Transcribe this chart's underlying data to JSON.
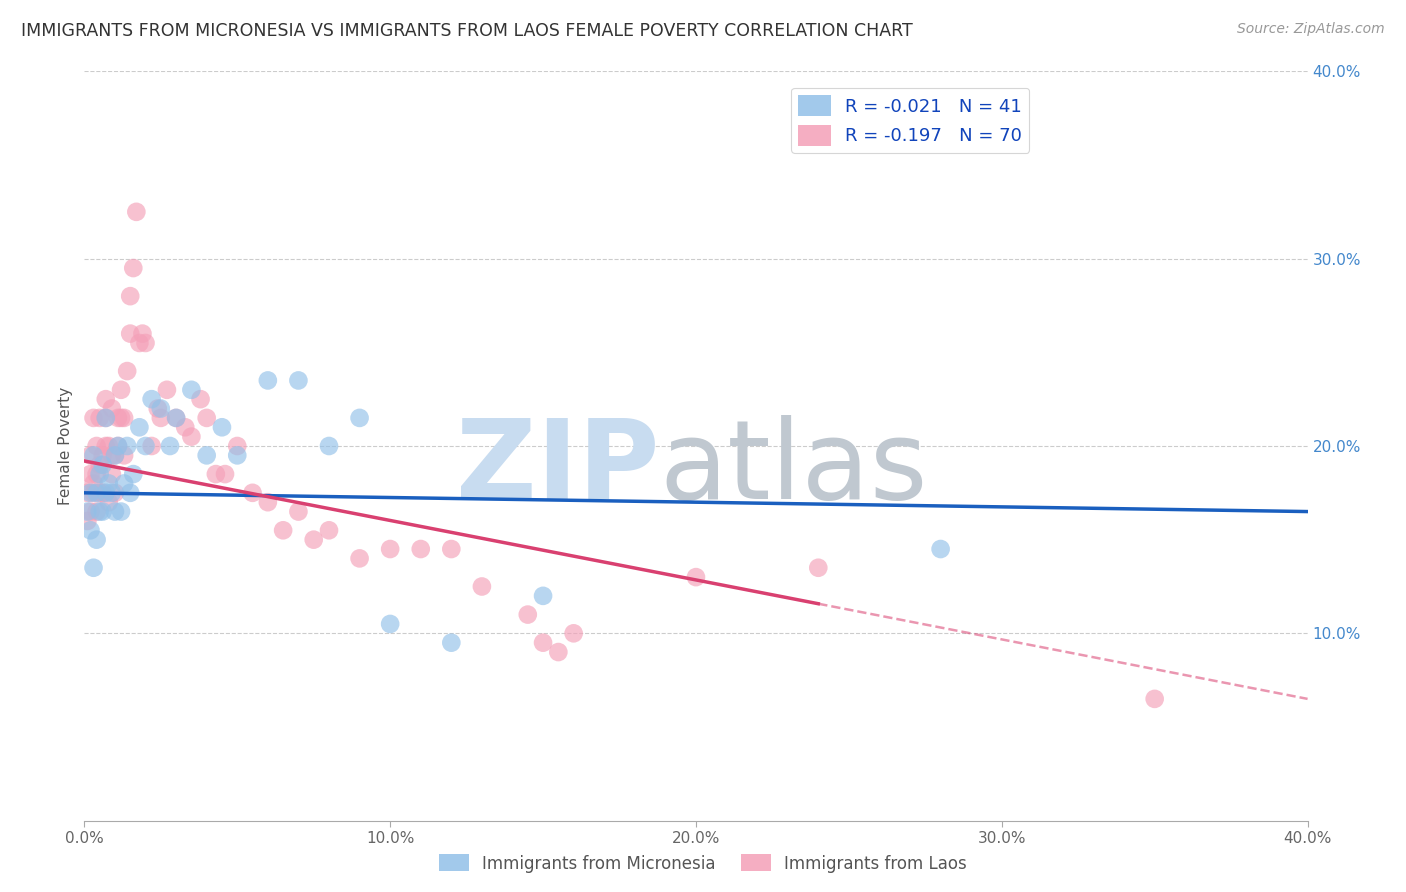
{
  "title": "IMMIGRANTS FROM MICRONESIA VS IMMIGRANTS FROM LAOS FEMALE POVERTY CORRELATION CHART",
  "source": "Source: ZipAtlas.com",
  "ylabel": "Female Poverty",
  "x_min": 0.0,
  "x_max": 0.4,
  "y_min": 0.0,
  "y_max": 0.4,
  "x_ticks": [
    0.0,
    0.1,
    0.2,
    0.3,
    0.4
  ],
  "x_tick_labels": [
    "0.0%",
    "10.0%",
    "20.0%",
    "30.0%",
    "40.0%"
  ],
  "y_ticks_right": [
    0.1,
    0.2,
    0.3,
    0.4
  ],
  "y_tick_labels_right": [
    "10.0%",
    "20.0%",
    "30.0%",
    "40.0%"
  ],
  "micronesia_color": "#92C0E8",
  "laos_color": "#F4A0B8",
  "micronesia_R": -0.021,
  "micronesia_N": 41,
  "laos_R": -0.197,
  "laos_N": 70,
  "legend_label_micronesia": "Immigrants from Micronesia",
  "legend_label_laos": "Immigrants from Laos",
  "micronesia_x": [
    0.001,
    0.002,
    0.002,
    0.003,
    0.003,
    0.004,
    0.004,
    0.005,
    0.005,
    0.006,
    0.006,
    0.007,
    0.007,
    0.008,
    0.009,
    0.01,
    0.01,
    0.011,
    0.012,
    0.013,
    0.014,
    0.015,
    0.016,
    0.018,
    0.02,
    0.022,
    0.025,
    0.028,
    0.03,
    0.035,
    0.04,
    0.045,
    0.05,
    0.06,
    0.07,
    0.08,
    0.09,
    0.1,
    0.12,
    0.15,
    0.28
  ],
  "micronesia_y": [
    0.165,
    0.155,
    0.175,
    0.135,
    0.195,
    0.15,
    0.175,
    0.165,
    0.185,
    0.165,
    0.19,
    0.175,
    0.215,
    0.18,
    0.175,
    0.195,
    0.165,
    0.2,
    0.165,
    0.18,
    0.2,
    0.175,
    0.185,
    0.21,
    0.2,
    0.225,
    0.22,
    0.2,
    0.215,
    0.23,
    0.195,
    0.21,
    0.195,
    0.235,
    0.235,
    0.2,
    0.215,
    0.105,
    0.095,
    0.12,
    0.145
  ],
  "laos_x": [
    0.001,
    0.001,
    0.002,
    0.002,
    0.002,
    0.003,
    0.003,
    0.003,
    0.004,
    0.004,
    0.004,
    0.005,
    0.005,
    0.005,
    0.006,
    0.006,
    0.007,
    0.007,
    0.007,
    0.008,
    0.008,
    0.009,
    0.009,
    0.009,
    0.01,
    0.01,
    0.011,
    0.011,
    0.012,
    0.012,
    0.013,
    0.013,
    0.014,
    0.015,
    0.015,
    0.016,
    0.017,
    0.018,
    0.019,
    0.02,
    0.022,
    0.024,
    0.025,
    0.027,
    0.03,
    0.033,
    0.035,
    0.038,
    0.04,
    0.043,
    0.046,
    0.05,
    0.055,
    0.06,
    0.065,
    0.07,
    0.075,
    0.08,
    0.09,
    0.1,
    0.11,
    0.12,
    0.13,
    0.145,
    0.15,
    0.155,
    0.16,
    0.2,
    0.24,
    0.35
  ],
  "laos_y": [
    0.16,
    0.175,
    0.165,
    0.185,
    0.195,
    0.175,
    0.18,
    0.215,
    0.165,
    0.185,
    0.2,
    0.175,
    0.19,
    0.215,
    0.175,
    0.195,
    0.2,
    0.215,
    0.225,
    0.17,
    0.2,
    0.185,
    0.22,
    0.195,
    0.175,
    0.195,
    0.215,
    0.2,
    0.23,
    0.215,
    0.195,
    0.215,
    0.24,
    0.26,
    0.28,
    0.295,
    0.325,
    0.255,
    0.26,
    0.255,
    0.2,
    0.22,
    0.215,
    0.23,
    0.215,
    0.21,
    0.205,
    0.225,
    0.215,
    0.185,
    0.185,
    0.2,
    0.175,
    0.17,
    0.155,
    0.165,
    0.15,
    0.155,
    0.14,
    0.145,
    0.145,
    0.145,
    0.125,
    0.11,
    0.095,
    0.09,
    0.1,
    0.13,
    0.135,
    0.065
  ],
  "mic_line_x0": 0.0,
  "mic_line_x1": 0.4,
  "mic_line_y0": 0.175,
  "mic_line_y1": 0.165,
  "laos_line_x0": 0.0,
  "laos_line_solid_x1": 0.24,
  "laos_line_x1": 0.4,
  "laos_line_y0": 0.192,
  "laos_line_y1": 0.065,
  "background_color": "#ffffff",
  "grid_color": "#cccccc"
}
